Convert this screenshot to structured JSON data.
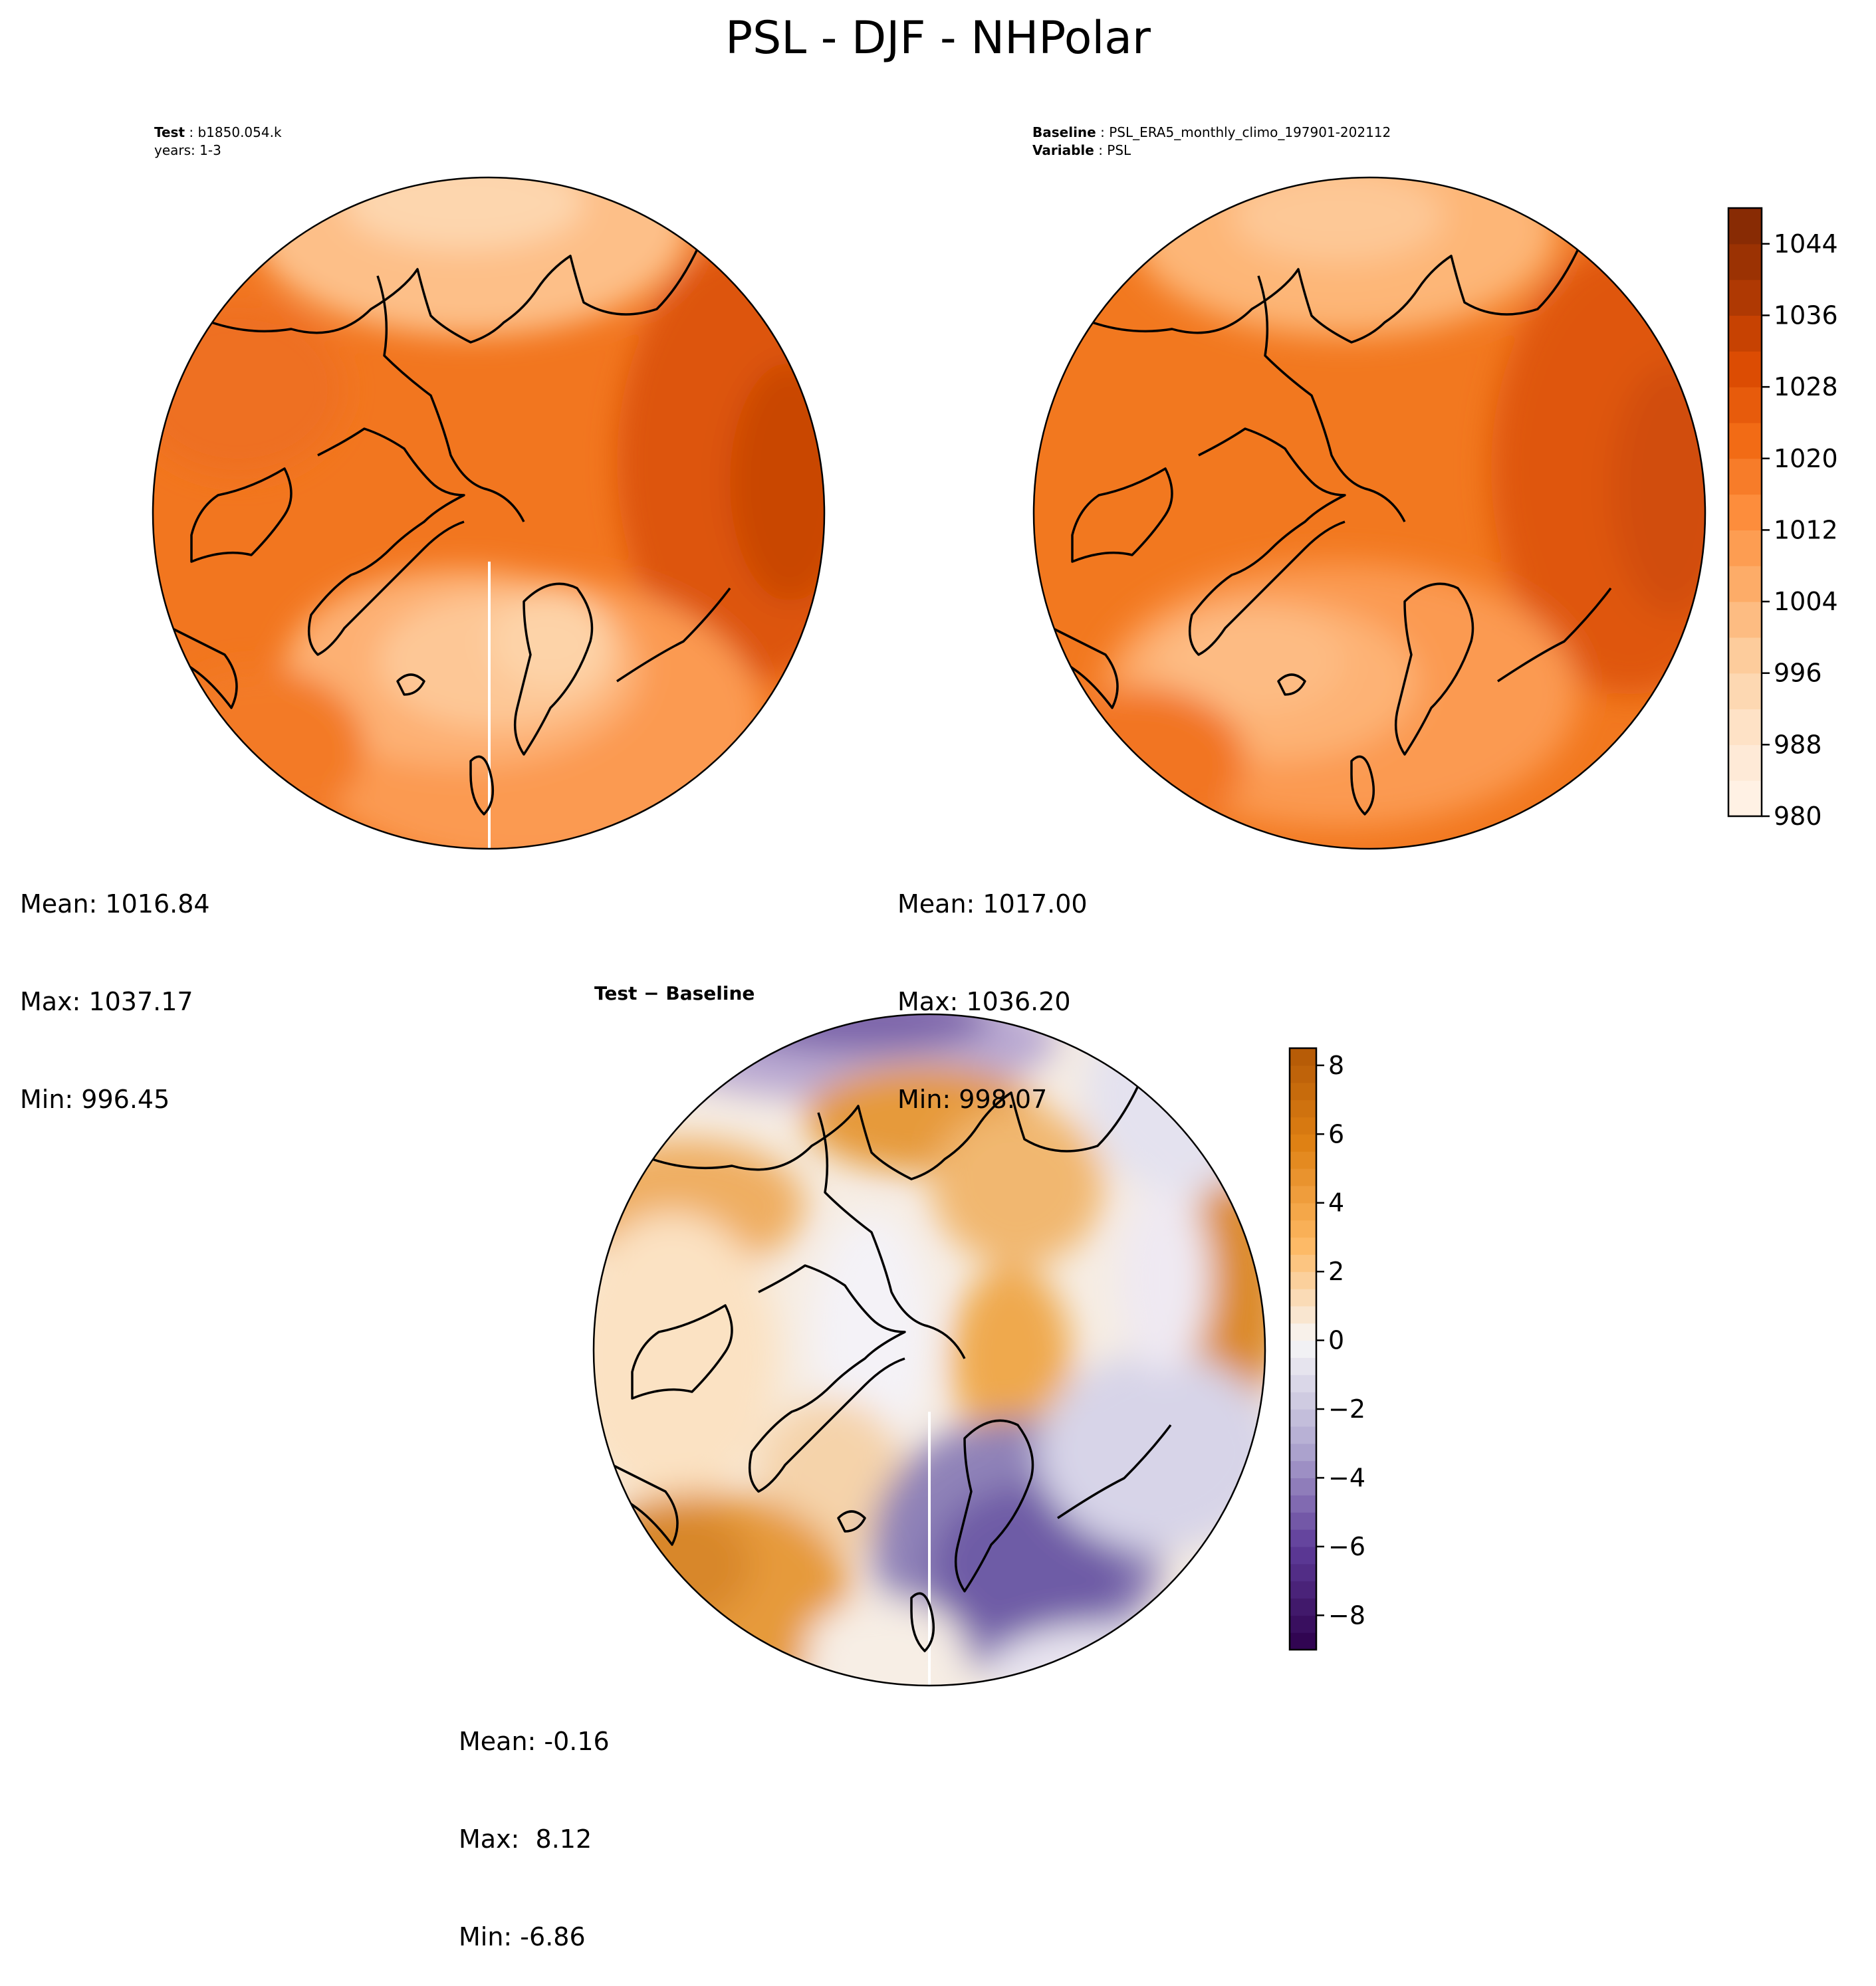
{
  "figure": {
    "title": "PSL - DJF - NHPolar"
  },
  "panels": {
    "test": {
      "header_label": "Test",
      "header_value": "b1850.054.k",
      "header_line2": "years: 1-3",
      "stats": {
        "mean": "Mean: 1016.84",
        "max": "Max: 1037.17",
        "min": "Min: 996.45"
      }
    },
    "baseline": {
      "header_label": "Baseline",
      "header_value": "PSL_ERA5_monthly_climo_197901-202112",
      "header_label2": "Variable",
      "header_value2": "PSL",
      "stats": {
        "mean": "Mean: 1017.00",
        "max": "Max: 1036.20",
        "min": "Min: 998.07"
      }
    },
    "diff": {
      "header": "Test − Baseline",
      "stats": {
        "mean": "Mean: -0.16",
        "max": "Max:  8.12",
        "min": "Min: -6.86"
      }
    }
  },
  "chart_data": [
    {
      "type": "heatmap",
      "projection": "north-polar-stereographic",
      "field": "PSL",
      "season": "DJF",
      "panel": "test",
      "colormap": "Oranges",
      "colorbar_range": [
        980,
        1048
      ],
      "mean": 1016.84,
      "max": 1037.17,
      "min": 996.45
    },
    {
      "type": "heatmap",
      "projection": "north-polar-stereographic",
      "field": "PSL",
      "season": "DJF",
      "panel": "baseline",
      "colormap": "Oranges",
      "colorbar_range": [
        980,
        1048
      ],
      "colorbar_ticks": [
        "980",
        "988",
        "996",
        "1004",
        "1012",
        "1020",
        "1028",
        "1036",
        "1044"
      ],
      "mean": 1017.0,
      "max": 1036.2,
      "min": 998.07
    },
    {
      "type": "heatmap",
      "projection": "north-polar-stereographic",
      "field": "PSL",
      "season": "DJF",
      "panel": "diff",
      "colormap": "PuOr_r",
      "colorbar_range": [
        -9,
        8.5
      ],
      "colorbar_ticks": [
        "8",
        "6",
        "4",
        "2",
        "0",
        "−2",
        "−4",
        "−6",
        "−8"
      ],
      "mean": -0.16,
      "max": 8.12,
      "min": -6.86
    }
  ],
  "colors": {
    "orange_levels": [
      "#fff5eb",
      "#fee6ce",
      "#fdd0a2",
      "#fdae6b",
      "#fd8d3c",
      "#f16913",
      "#d94801",
      "#a63603",
      "#7f2704"
    ],
    "diff_pos": "#b35806",
    "diff_neutral": "#f7f7f7",
    "diff_neg": "#2d004b"
  }
}
